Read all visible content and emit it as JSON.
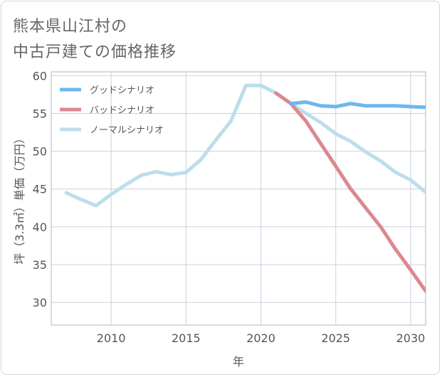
{
  "title_lines": [
    "熊本県山江村の",
    "中古戸建ての価格推移"
  ],
  "chart_data": {
    "type": "line",
    "xlabel": "年",
    "ylabel": "坪（3.3㎡）単価（万円）",
    "xlim": [
      2006,
      2031
    ],
    "ylim": [
      27,
      60.5
    ],
    "xticks": [
      2010,
      2015,
      2020,
      2025,
      2030
    ],
    "yticks": [
      30,
      35,
      40,
      45,
      50,
      55,
      60
    ],
    "grid": true,
    "legend_position": "top-left",
    "series": [
      {
        "name": "グッドシナリオ",
        "color": "#6cb8ee",
        "x": [
          2022,
          2023,
          2024,
          2025,
          2026,
          2027,
          2028,
          2029,
          2030,
          2031
        ],
        "y": [
          56.3,
          56.5,
          56.0,
          55.9,
          56.3,
          56.0,
          56.0,
          56.0,
          55.9,
          55.8
        ]
      },
      {
        "name": "バッドシナリオ",
        "color": "#dc8890",
        "x": [
          2021,
          2022,
          2023,
          2024,
          2025,
          2026,
          2027,
          2028,
          2029,
          2030,
          2031
        ],
        "y": [
          57.7,
          56.3,
          54.0,
          51.0,
          48.0,
          45.0,
          42.5,
          40.0,
          37.0,
          34.3,
          31.5
        ]
      },
      {
        "name": "ノーマルシナリオ",
        "color": "#bcdeea",
        "x": [
          2007,
          2008,
          2009,
          2010,
          2011,
          2012,
          2013,
          2014,
          2015,
          2016,
          2017,
          2018,
          2019,
          2020,
          2021,
          2022,
          2023,
          2024,
          2025,
          2026,
          2027,
          2028,
          2029,
          2030,
          2031
        ],
        "y": [
          44.5,
          43.6,
          42.8,
          44.3,
          45.6,
          46.8,
          47.3,
          46.9,
          47.2,
          48.9,
          51.5,
          54.0,
          58.7,
          58.7,
          57.7,
          56.3,
          55.0,
          53.8,
          52.3,
          51.3,
          49.9,
          48.7,
          47.2,
          46.2,
          44.6
        ]
      }
    ]
  }
}
